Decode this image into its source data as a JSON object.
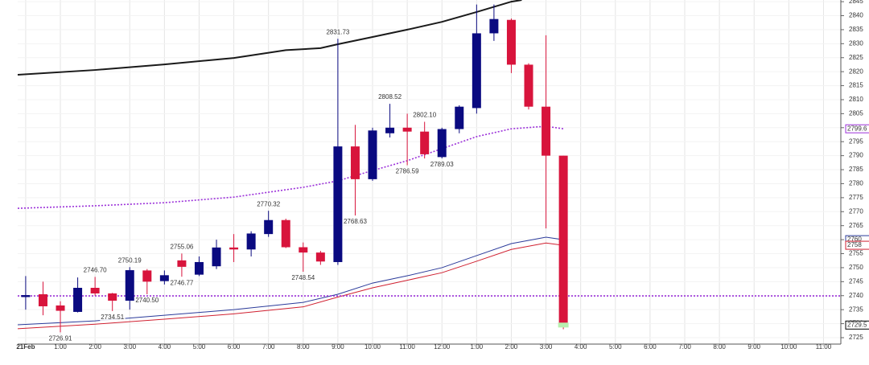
{
  "chart_data": {
    "type": "candlestick",
    "xlim": [
      -0.23,
      23.5
    ],
    "ylim": [
      2722.7,
      2845.6
    ],
    "xticks": [
      {
        "value": 0,
        "label": "21Feb"
      },
      {
        "value": 1,
        "label": "1:00"
      },
      {
        "value": 2,
        "label": "2:00"
      },
      {
        "value": 3,
        "label": "3:00"
      },
      {
        "value": 4,
        "label": "4:00"
      },
      {
        "value": 5,
        "label": "5:00"
      },
      {
        "value": 6,
        "label": "6:00"
      },
      {
        "value": 7,
        "label": "7:00"
      },
      {
        "value": 8,
        "label": "8:00"
      },
      {
        "value": 9,
        "label": "9:00"
      },
      {
        "value": 10,
        "label": "10:00"
      },
      {
        "value": 11,
        "label": "11:00"
      },
      {
        "value": 12,
        "label": "12:00"
      },
      {
        "value": 13,
        "label": "1:00"
      },
      {
        "value": 14,
        "label": "2:00"
      },
      {
        "value": 15,
        "label": "3:00"
      },
      {
        "value": 16,
        "label": "4:00"
      },
      {
        "value": 17,
        "label": "5:00"
      },
      {
        "value": 18,
        "label": "6:00"
      },
      {
        "value": 19,
        "label": "7:00"
      },
      {
        "value": 20,
        "label": "8:00"
      },
      {
        "value": 21,
        "label": "9:00"
      },
      {
        "value": 22,
        "label": "10:00"
      },
      {
        "value": 23,
        "label": "11:00"
      }
    ],
    "yticks": [
      2725,
      2730,
      2735,
      2740,
      2745,
      2750,
      2755,
      2760,
      2765,
      2770,
      2775,
      2780,
      2785,
      2790,
      2795,
      2800,
      2805,
      2810,
      2815,
      2820,
      2825,
      2830,
      2835,
      2840,
      2845
    ],
    "grid": true,
    "up_color": "#0a0a80",
    "down_color": "#d8143c",
    "candles": {
      "x": [
        0,
        0.5,
        1,
        1.5,
        2,
        2.5,
        3,
        3.5,
        4,
        4.5,
        5,
        5.5,
        6,
        6.5,
        7,
        7.5,
        8,
        8.5,
        9,
        9.5,
        10,
        10.5,
        11,
        11.5,
        12,
        12.5,
        13,
        13.5,
        14,
        14.5,
        15,
        15.5
      ],
      "open": [
        2739.5,
        2740.5,
        2736.5,
        2734.2,
        2742.8,
        2740.8,
        2738.2,
        2749,
        2745.2,
        2752.6,
        2747.5,
        2750.5,
        2757.2,
        2756.5,
        2762,
        2767,
        2757.3,
        2755.4,
        2752,
        2793.3,
        2781.6,
        2798,
        2800,
        2798.6,
        2789.5,
        2799.5,
        2807,
        2833.7,
        2838.5,
        2822.5,
        2807.5,
        2790
      ],
      "high": [
        2747,
        2745,
        2738,
        2746.5,
        2746.7,
        2741,
        2750.19,
        2749.5,
        2749,
        2755.06,
        2754,
        2760,
        2762,
        2763,
        2770.32,
        2767.5,
        2759,
        2756,
        2831.73,
        2801,
        2800,
        2808.52,
        2805,
        2802.1,
        2800,
        2808,
        2844,
        2844,
        2839,
        2823,
        2833,
        2790
      ],
      "low": [
        2735,
        2733,
        2726.91,
        2734,
        2740,
        2734.51,
        2735,
        2740.5,
        2744,
        2746.77,
        2747,
        2749.5,
        2752,
        2754,
        2761,
        2757,
        2748.54,
        2751,
        2751,
        2768.63,
        2781,
        2796.5,
        2786.59,
        2789,
        2789.03,
        2798,
        2805,
        2831,
        2819.5,
        2806.5,
        2764,
        2728
      ],
      "close": [
        2740.2,
        2736.2,
        2734.6,
        2742.8,
        2740.8,
        2738.2,
        2749.1,
        2745,
        2747.3,
        2750.3,
        2752,
        2757.2,
        2756.5,
        2762.2,
        2767,
        2757.3,
        2755.4,
        2752.2,
        2793.3,
        2781.6,
        2799,
        2800,
        2798.6,
        2790.5,
        2799.5,
        2807.5,
        2833.7,
        2838.8,
        2822.5,
        2807.5,
        2790,
        2729.5
      ]
    },
    "annotations": [
      {
        "x": 1,
        "value": 2726.91,
        "label": "2726.91"
      },
      {
        "x": 2,
        "value": 2746.7,
        "label": "2746.70"
      },
      {
        "x": 2.5,
        "value": 2734.51,
        "label": "2734.51"
      },
      {
        "x": 3,
        "value": 2750.19,
        "label": "2750.19"
      },
      {
        "x": 3.5,
        "value": 2740.5,
        "label": "2740.50"
      },
      {
        "x": 4.5,
        "value": 2755.06,
        "label": "2755.06"
      },
      {
        "x": 4.5,
        "value": 2746.77,
        "label": "2746.77"
      },
      {
        "x": 7,
        "value": 2770.32,
        "label": "2770.32"
      },
      {
        "x": 8,
        "value": 2748.54,
        "label": "2748.54"
      },
      {
        "x": 9,
        "value": 2831.73,
        "label": "2831.73"
      },
      {
        "x": 9.5,
        "value": 2768.63,
        "label": "2768.63"
      },
      {
        "x": 10.5,
        "value": 2808.52,
        "label": "2808.52"
      },
      {
        "x": 11,
        "value": 2786.59,
        "label": "2786.59"
      },
      {
        "x": 11.5,
        "value": 2802.1,
        "label": "2802.10"
      },
      {
        "x": 12,
        "value": 2789.03,
        "label": "2789.03"
      }
    ],
    "series": [
      {
        "color": "#1a1a1a",
        "dash": false,
        "x": [
          -0.23,
          2,
          4,
          6,
          7.5,
          8.5,
          9,
          10,
          11,
          12,
          13,
          14,
          14.3
        ],
        "values": [
          2818.9,
          2820.6,
          2822.6,
          2824.9,
          2827.7,
          2828.4,
          2829.8,
          2832.4,
          2835,
          2837.8,
          2841.3,
          2845,
          2845.6
        ]
      },
      {
        "color": "#9b30d9",
        "dash": true,
        "x": [
          -0.23,
          2,
          4,
          6,
          8,
          9,
          10,
          11,
          12,
          13,
          14,
          15,
          15.5
        ],
        "values": [
          2771.2,
          2772.1,
          2773.2,
          2775.2,
          2778.7,
          2781,
          2784.7,
          2788.2,
          2792.5,
          2796.8,
          2799.6,
          2800.5,
          2799.6
        ]
      },
      {
        "color": "#2a3a9a",
        "dash": false,
        "x": [
          -0.23,
          2,
          4,
          6,
          8,
          9,
          10,
          11,
          12,
          13,
          14,
          15,
          15.5
        ],
        "values": [
          2729.6,
          2731,
          2733,
          2735,
          2737.6,
          2740.5,
          2744.5,
          2747.1,
          2750,
          2754.3,
          2758.6,
          2760.9,
          2760
        ]
      },
      {
        "color": "#d02030",
        "dash": false,
        "x": [
          -0.23,
          2,
          4,
          6,
          8,
          9,
          10,
          11,
          12,
          13,
          14,
          15,
          15.5
        ],
        "values": [
          2728.2,
          2729.8,
          2731.6,
          2733.5,
          2736,
          2739.5,
          2742.8,
          2745.5,
          2748.2,
          2752.3,
          2756.5,
          2758.8,
          2758
        ]
      },
      {
        "color": "#9b30d9",
        "dash": true,
        "x": [
          -0.23,
          23.5
        ],
        "values": [
          2739.9,
          2739.9
        ]
      }
    ]
  }
}
